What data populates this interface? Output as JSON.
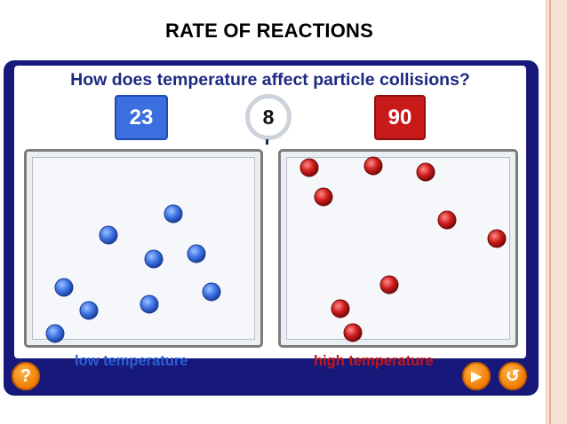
{
  "title": "RATE OF REACTIONS",
  "question": "How does temperature affect particle collisions?",
  "low": {
    "temperature": "23",
    "label": "low temperature",
    "color": "#3b6fe0"
  },
  "high": {
    "temperature": "90",
    "label": "high temperature",
    "color": "#c81a1a"
  },
  "timer": "8",
  "buttons": {
    "help": "?",
    "play": "▶",
    "reset": "↺"
  },
  "icons": [
    "question-icon",
    "play-icon",
    "reset-icon"
  ],
  "particle_counts": {
    "low": 10,
    "high": 10
  }
}
